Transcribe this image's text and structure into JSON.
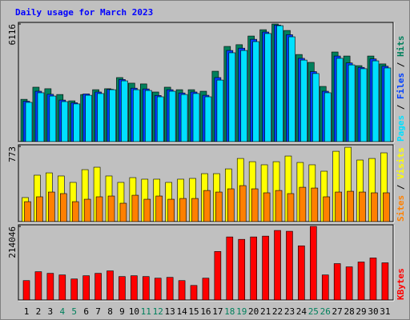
{
  "chart_data": {
    "type": "bar",
    "title": "Daily usage for March 2023",
    "categories": [
      "1",
      "2",
      "3",
      "4",
      "5",
      "6",
      "7",
      "8",
      "9",
      "10",
      "11",
      "12",
      "13",
      "14",
      "15",
      "16",
      "17",
      "18",
      "19",
      "20",
      "21",
      "22",
      "23",
      "24",
      "25",
      "26",
      "27",
      "28",
      "29",
      "30",
      "31"
    ],
    "category_colors": [
      "#000000",
      "#000000",
      "#000000",
      "#00805c",
      "#00805c",
      "#000000",
      "#000000",
      "#000000",
      "#000000",
      "#000000",
      "#00805c",
      "#00805c",
      "#000000",
      "#000000",
      "#000000",
      "#000000",
      "#000000",
      "#00805c",
      "#00805c",
      "#000000",
      "#000000",
      "#000000",
      "#000000",
      "#000000",
      "#00805c",
      "#00805c",
      "#000000",
      "#000000",
      "#000000",
      "#000000",
      "#000000"
    ],
    "legend_separator": "/",
    "panels": [
      {
        "ylim": [
          0,
          6116
        ],
        "yticks": [
          6116
        ],
        "series": [
          {
            "name": "Hits",
            "color": "#00805c",
            "values": [
              2200,
              2830,
              2750,
              2450,
              2120,
              2450,
              2700,
              2750,
              3330,
              3040,
              3000,
              2580,
              2830,
              2700,
              2700,
              2620,
              3660,
              4950,
              5040,
              5490,
              5820,
              6116,
              5780,
              4530,
              4120,
              2870,
              4660,
              4450,
              3950,
              4450,
              4040
            ]
          },
          {
            "name": "Files",
            "color": "#0040ff",
            "values": [
              2100,
              2620,
              2460,
              2160,
              2020,
              2480,
              2580,
              2720,
              3230,
              2780,
              2740,
              2400,
              2700,
              2530,
              2580,
              2410,
              3330,
              4740,
              4860,
              5320,
              5700,
              6060,
              5560,
              4330,
              3640,
              2620,
              4450,
              4090,
              3860,
              4300,
              3920
            ]
          },
          {
            "name": "Pages",
            "color": "#00e0ff",
            "values": [
              2040,
              2540,
              2370,
              2080,
              1960,
              2410,
              2500,
              2700,
              3160,
              2700,
              2660,
              2330,
              2620,
              2450,
              2500,
              2330,
              3200,
              4620,
              4740,
              5200,
              5620,
              6030,
              5450,
              4240,
              3540,
              2540,
              4330,
              3990,
              3790,
              4200,
              3830
            ]
          }
        ]
      },
      {
        "ylim": [
          0,
          773
        ],
        "yticks": [
          773
        ],
        "series": [
          {
            "name": "Visits",
            "color": "#ffff00",
            "values": [
              247,
              477,
              501,
              469,
              403,
              534,
              559,
              469,
              403,
              452,
              436,
              436,
              403,
              436,
              444,
              493,
              493,
              542,
              649,
              616,
              584,
              616,
              674,
              608,
              584,
              518,
              723,
              764,
              633,
              649,
              707
            ]
          },
          {
            "name": "Sites",
            "color": "#ff8000",
            "values": [
              205,
              255,
              304,
              288,
              205,
              230,
              255,
              263,
              189,
              271,
              230,
              263,
              230,
              238,
              238,
              320,
              304,
              337,
              370,
              337,
              296,
              320,
              288,
              353,
              345,
              255,
              304,
              312,
              304,
              296,
              296
            ]
          }
        ]
      },
      {
        "ylim": [
          0,
          214046
        ],
        "yticks": [
          214046
        ],
        "series": [
          {
            "name": "KBytes",
            "color": "#ff0000",
            "values": [
              56450,
              82320,
              77600,
              72900,
              61150,
              70560,
              77600,
              84670,
              68200,
              70560,
              68200,
              63500,
              65860,
              56450,
              42340,
              63500,
              141100,
              183460,
              176400,
              183460,
              185800,
              202270,
              199920,
              157580,
              214046,
              72900,
              105840,
              96430,
              110540,
              122300,
              108190
            ]
          }
        ]
      }
    ]
  }
}
